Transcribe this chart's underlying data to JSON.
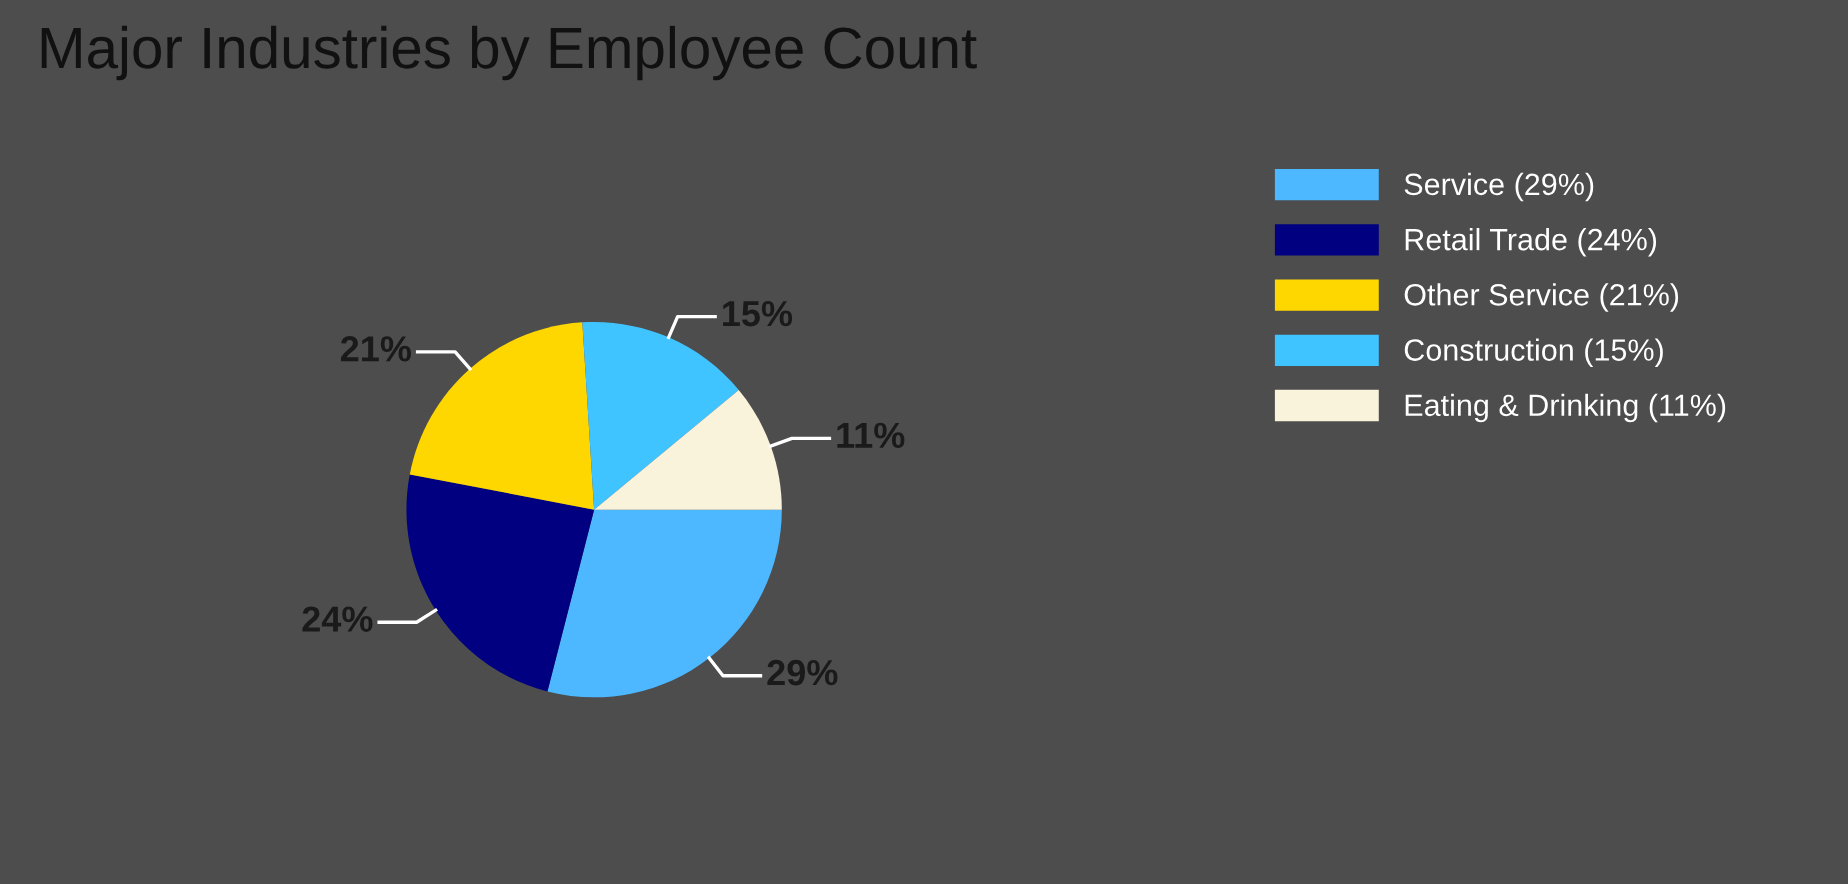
{
  "chart_data": {
    "type": "pie",
    "title": "Major Industries by Employee Count",
    "categories": [
      "Service (29%)",
      "Retail Trade (24%)",
      "Other Service (21%)",
      "Construction (15%)",
      "Eating & Drinking (11%)"
    ],
    "values": [
      29,
      24,
      21,
      15,
      11
    ],
    "value_labels": [
      "29%",
      "24%",
      "21%",
      "15%",
      "11%"
    ],
    "colors": [
      "#4db8ff",
      "#000080",
      "#ffd700",
      "#40c4ff",
      "#faf3dc"
    ],
    "legend": "top right"
  }
}
